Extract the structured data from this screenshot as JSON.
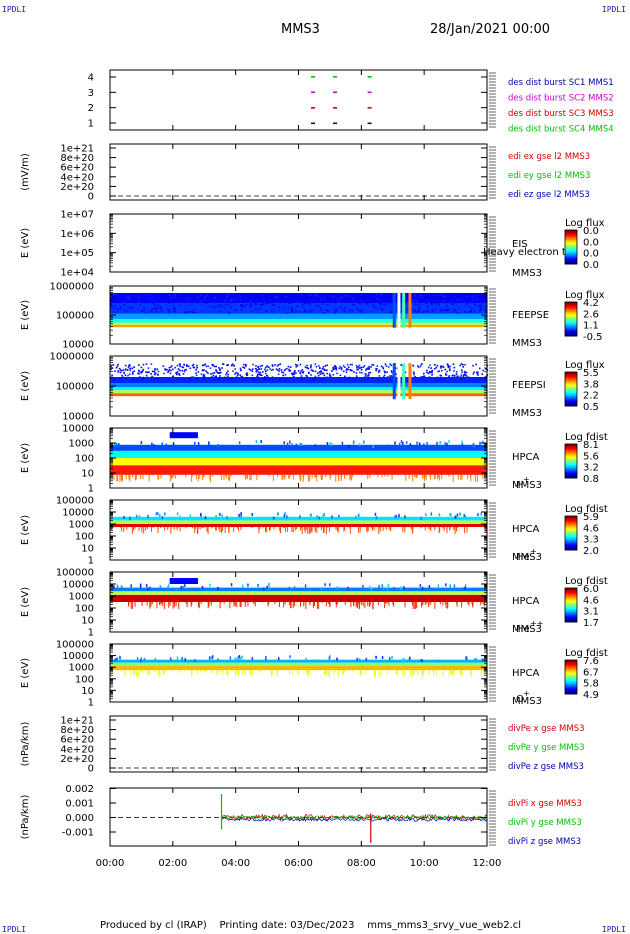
{
  "corners": {
    "tl": "IPDLI",
    "tr": "IPDLI",
    "bl": "IPDLI",
    "br": "IPDLI"
  },
  "header": {
    "spacecraft": "MMS3",
    "date": "28/Jan/2021 00:00"
  },
  "footer": {
    "produced_by": "Produced by cl (IRAP)",
    "printing_date": "Printing date: 03/Dec/2023",
    "script": "mms_mms3_srvy_vue_web2.cl"
  },
  "x_ticks": [
    "00:00",
    "02:00",
    "04:00",
    "06:00",
    "08:00",
    "10:00",
    "12:00"
  ],
  "colors": {
    "red": "#d40000",
    "green": "#00c000",
    "blue": "#0000b0",
    "magenta": "#cc00cc"
  },
  "chart_data": [
    {
      "type": "scatter",
      "panel": "burst",
      "ylabel": "",
      "ytick_labels": [
        "1",
        "2",
        "3",
        "4"
      ],
      "ylim": [
        0.5,
        4.5
      ],
      "legend": [
        {
          "label": "des dist burst SC1 MMS1",
          "color": "#0000b0"
        },
        {
          "label": "des dist burst SC2 MMS2",
          "color": "#cc00cc"
        },
        {
          "label": "des dist burst SC3 MMS3",
          "color": "#d40000"
        },
        {
          "label": "des dist burst SC4 MMS4",
          "color": "#00c000"
        }
      ],
      "bursts_hours": [
        6.4,
        7.1,
        8.2
      ]
    },
    {
      "type": "line",
      "panel": "edi_e",
      "ylabel": "(mV/m)",
      "ytick_labels": [
        "0",
        "2e+20",
        "4e+20",
        "6e+20",
        "8e+20",
        "1e+21"
      ],
      "ylim": [
        0,
        1e+21
      ],
      "legend": [
        {
          "label": "edi ex gse l2 MMS3",
          "color": "#d40000"
        },
        {
          "label": "edi ey gse l2 MMS3",
          "color": "#00c000"
        },
        {
          "label": "edi ez gse l2 MMS3",
          "color": "#0000b0"
        }
      ]
    },
    {
      "type": "heatmap",
      "panel": "eis",
      "ylabel": "E (eV)",
      "ytick_labels": [
        "1e+04",
        "1e+05",
        "1e+06",
        "1e+07"
      ],
      "instrument": "EIS",
      "spacecraft": "MMS3",
      "overlay_text": "Heavy electron to",
      "colorbar": {
        "title": "Log flux",
        "ticks": [
          "0.0",
          "0.0",
          "0.0",
          "0.0"
        ]
      }
    },
    {
      "type": "heatmap",
      "panel": "feeps_e",
      "ylabel": "E (eV)",
      "ytick_labels": [
        "10000",
        "100000",
        "1000000"
      ],
      "instrument": "FEEPSE",
      "spacecraft": "MMS3",
      "colorbar": {
        "title": "Log flux",
        "ticks": [
          "4.2",
          "2.6",
          "1.1",
          "-0.5"
        ]
      }
    },
    {
      "type": "heatmap",
      "panel": "feeps_i",
      "ylabel": "E (eV)",
      "ytick_labels": [
        "10000",
        "100000",
        "1000000"
      ],
      "instrument": "FEEPSI",
      "spacecraft": "MMS3",
      "colorbar": {
        "title": "Log flux",
        "ticks": [
          "5.5",
          "3.8",
          "2.2",
          "0.5"
        ]
      }
    },
    {
      "type": "heatmap",
      "panel": "hpca_h",
      "ylabel": "E (eV)",
      "ytick_labels": [
        "1",
        "10",
        "100",
        "1000",
        "10000"
      ],
      "instrument": "HPCA",
      "spacecraft": "MMS3",
      "species": "H",
      "charge": "+",
      "colorbar": {
        "title": "Log fdist",
        "ticks": [
          "8.1",
          "5.6",
          "3.2",
          "0.8"
        ]
      }
    },
    {
      "type": "heatmap",
      "panel": "hpca_he1",
      "ylabel": "E (eV)",
      "ytick_labels": [
        "1",
        "10",
        "100",
        "1000",
        "10000",
        "100000"
      ],
      "instrument": "HPCA",
      "spacecraft": "MMS3",
      "species": "He",
      "charge": "+",
      "colorbar": {
        "title": "Log fdist",
        "ticks": [
          "5.9",
          "4.6",
          "3.3",
          "2.0"
        ]
      }
    },
    {
      "type": "heatmap",
      "panel": "hpca_he2",
      "ylabel": "E (eV)",
      "ytick_labels": [
        "1",
        "10",
        "100",
        "1000",
        "10000",
        "100000"
      ],
      "instrument": "HPCA",
      "spacecraft": "MMS3",
      "species": "He",
      "charge": "++",
      "colorbar": {
        "title": "Log fdist",
        "ticks": [
          "6.0",
          "4.6",
          "3.1",
          "1.7"
        ]
      }
    },
    {
      "type": "heatmap",
      "panel": "hpca_o",
      "ylabel": "E (eV)",
      "ytick_labels": [
        "1",
        "10",
        "100",
        "1000",
        "10000",
        "100000"
      ],
      "instrument": "HPCA",
      "spacecraft": "MMS3",
      "species": "O",
      "charge": "+",
      "colorbar": {
        "title": "Log fdist",
        "ticks": [
          "7.6",
          "6.7",
          "5.8",
          "4.9"
        ]
      }
    },
    {
      "type": "line",
      "panel": "divpe",
      "ylabel": "(nPa/km)",
      "ytick_labels": [
        "0",
        "2e+20",
        "4e+20",
        "6e+20",
        "8e+20",
        "1e+21"
      ],
      "ylim": [
        0,
        1e+21
      ],
      "legend": [
        {
          "label": "divPe x gse MMS3",
          "color": "#d40000"
        },
        {
          "label": "divPe y gse MMS3",
          "color": "#00c000"
        },
        {
          "label": "divPe z gse MMS3",
          "color": "#0000b0"
        }
      ]
    },
    {
      "type": "line",
      "panel": "divpi",
      "ylabel": "(nPa/km)",
      "ytick_labels": [
        "-0.001",
        "0.000",
        "0.001",
        "0.002"
      ],
      "ylim": [
        -0.0018,
        0.0022
      ],
      "legend": [
        {
          "label": "divPi x gse MMS3",
          "color": "#d40000"
        },
        {
          "label": "divPi y gse MMS3",
          "color": "#00c000"
        },
        {
          "label": "divPi z gse MMS3",
          "color": "#0000b0"
        }
      ],
      "data_start_hour": 3.55
    }
  ]
}
